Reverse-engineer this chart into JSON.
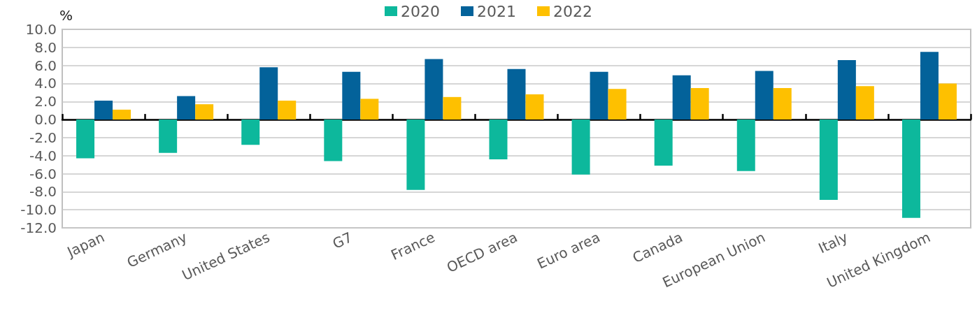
{
  "chart_data": {
    "type": "bar",
    "ylabel": "%",
    "categories": [
      "Japan",
      "Germany",
      "United States",
      "G7",
      "France",
      "OECD area",
      "Euro area",
      "Canada",
      "European Union",
      "Italy",
      "United Kingdom"
    ],
    "series": [
      {
        "name": "2020",
        "color": "#0db89c",
        "values": [
          -4.3,
          -3.7,
          -2.8,
          -4.6,
          -7.8,
          -4.4,
          -6.1,
          -5.1,
          -5.7,
          -8.9,
          -10.9
        ]
      },
      {
        "name": "2021",
        "color": "#03629a",
        "values": [
          2.1,
          2.6,
          5.8,
          5.3,
          6.7,
          5.6,
          5.3,
          4.9,
          5.4,
          6.6,
          7.5
        ]
      },
      {
        "name": "2022",
        "color": "#fec000",
        "values": [
          1.1,
          1.7,
          2.1,
          2.3,
          2.5,
          2.8,
          3.4,
          3.5,
          3.5,
          3.7,
          4.0
        ]
      }
    ],
    "ylim": [
      -12,
      10
    ],
    "yticks": [
      {
        "value": -12,
        "label": "-12.0"
      },
      {
        "value": -10,
        "label": "-10.0"
      },
      {
        "value": -8,
        "label": "-8.0"
      },
      {
        "value": -6,
        "label": "-6.0"
      },
      {
        "value": -4,
        "label": "-4.0"
      },
      {
        "value": -2,
        "label": "-2.0"
      },
      {
        "value": 0,
        "label": "0.0"
      },
      {
        "value": 2,
        "label": "2.0"
      },
      {
        "value": 4,
        "label": "4.0"
      },
      {
        "value": 6,
        "label": "6.0"
      },
      {
        "value": 8,
        "label": "8.0"
      },
      {
        "value": 10,
        "label": "10.0"
      }
    ],
    "grid": "y",
    "legend": "top"
  }
}
